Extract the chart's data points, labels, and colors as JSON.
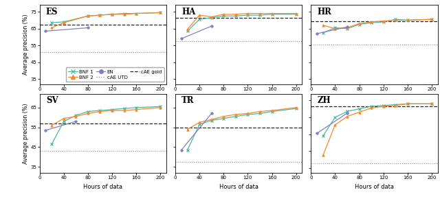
{
  "panels": [
    {
      "label": "ES",
      "x": [
        10,
        20,
        40,
        80,
        100,
        120,
        140,
        160,
        200
      ],
      "bnf1": [
        null,
        68.5,
        69.0,
        72.5,
        73.0,
        73.5,
        74.0,
        74.0,
        74.5
      ],
      "bnf2": [
        null,
        65.5,
        68.5,
        72.5,
        73.0,
        73.5,
        73.5,
        74.0,
        74.5
      ],
      "en": [
        63.5,
        null,
        null,
        65.5,
        null,
        null,
        null,
        null,
        null
      ],
      "cae_utd": 51.0,
      "cae_gold": 67.5,
      "ylim": [
        32,
        79
      ],
      "yticks": [
        35,
        45,
        55,
        65,
        75
      ]
    },
    {
      "label": "HA",
      "x": [
        10,
        20,
        40,
        60,
        80,
        100,
        120,
        140,
        160,
        200
      ],
      "bnf1": [
        null,
        63.5,
        70.5,
        71.5,
        72.5,
        72.5,
        73.0,
        73.0,
        73.5,
        73.5
      ],
      "bnf2": [
        null,
        64.5,
        73.0,
        72.0,
        73.5,
        73.5,
        74.0,
        74.0,
        74.0,
        74.0
      ],
      "en": [
        59.0,
        null,
        null,
        66.5,
        null,
        null,
        null,
        null,
        null,
        null
      ],
      "cae_utd": 57.5,
      "cae_gold": 71.5,
      "ylim": [
        32,
        79
      ],
      "yticks": [
        35,
        45,
        55,
        65,
        75
      ]
    },
    {
      "label": "HR",
      "x": [
        10,
        20,
        40,
        60,
        80,
        100,
        120,
        140,
        160,
        200
      ],
      "bnf1": [
        null,
        62.5,
        65.5,
        65.0,
        67.5,
        68.5,
        69.0,
        70.5,
        70.0,
        70.5
      ],
      "bnf2": [
        null,
        67.0,
        65.0,
        65.5,
        68.0,
        69.0,
        69.5,
        70.0,
        70.0,
        70.5
      ],
      "en": [
        62.0,
        null,
        null,
        66.0,
        null,
        null,
        null,
        null,
        null,
        null
      ],
      "cae_utd": 55.5,
      "cae_gold": 69.5,
      "ylim": [
        32,
        79
      ],
      "yticks": [
        35,
        45,
        55,
        65,
        75
      ]
    },
    {
      "label": "SV",
      "x": [
        10,
        20,
        40,
        60,
        80,
        100,
        120,
        140,
        160,
        200
      ],
      "bnf1": [
        null,
        46.5,
        58.0,
        61.0,
        63.0,
        63.5,
        64.0,
        64.5,
        65.0,
        65.5
      ],
      "bnf2": [
        null,
        56.0,
        59.5,
        60.5,
        62.0,
        63.0,
        63.5,
        63.5,
        64.0,
        65.0
      ],
      "en": [
        53.5,
        null,
        null,
        58.0,
        null,
        null,
        null,
        null,
        null,
        null
      ],
      "cae_utd": 43.0,
      "cae_gold": 57.0,
      "ylim": [
        32,
        72
      ],
      "yticks": [
        35,
        45,
        55,
        65
      ]
    },
    {
      "label": "TR",
      "x": [
        10,
        20,
        40,
        60,
        80,
        100,
        120,
        140,
        160,
        200
      ],
      "bnf1": [
        null,
        43.5,
        56.5,
        58.5,
        59.5,
        60.5,
        61.5,
        62.0,
        63.0,
        64.5
      ],
      "bnf2": [
        null,
        54.0,
        57.5,
        59.0,
        60.5,
        61.5,
        62.0,
        63.0,
        63.5,
        65.0
      ],
      "en": [
        43.5,
        null,
        null,
        62.0,
        null,
        null,
        null,
        null,
        null,
        null
      ],
      "cae_utd": 37.5,
      "cae_gold": 55.0,
      "ylim": [
        32,
        72
      ],
      "yticks": [
        35,
        45,
        55,
        65
      ]
    },
    {
      "label": "ZH",
      "x": [
        10,
        20,
        40,
        60,
        80,
        100,
        120,
        140,
        160,
        200
      ],
      "bnf1": [
        null,
        54.0,
        65.0,
        68.5,
        70.0,
        71.5,
        72.0,
        72.5,
        73.0,
        73.0
      ],
      "bnf2": [
        null,
        42.5,
        60.5,
        65.5,
        68.0,
        70.5,
        71.5,
        72.0,
        73.0,
        73.0
      ],
      "en": [
        55.5,
        null,
        null,
        67.5,
        null,
        null,
        null,
        null,
        null,
        null
      ],
      "cae_utd": 37.5,
      "cae_gold": 71.5,
      "ylim": [
        32,
        79
      ],
      "yticks": [
        35,
        45,
        55,
        65,
        75
      ]
    }
  ],
  "color_bnf1": "#4cb8a0",
  "color_bnf2": "#f4892e",
  "color_en": "#8080c0",
  "color_utd": "#888888",
  "color_gold": "#222222",
  "xlabel": "Hours of data",
  "ylabel": "Average precision (%)"
}
